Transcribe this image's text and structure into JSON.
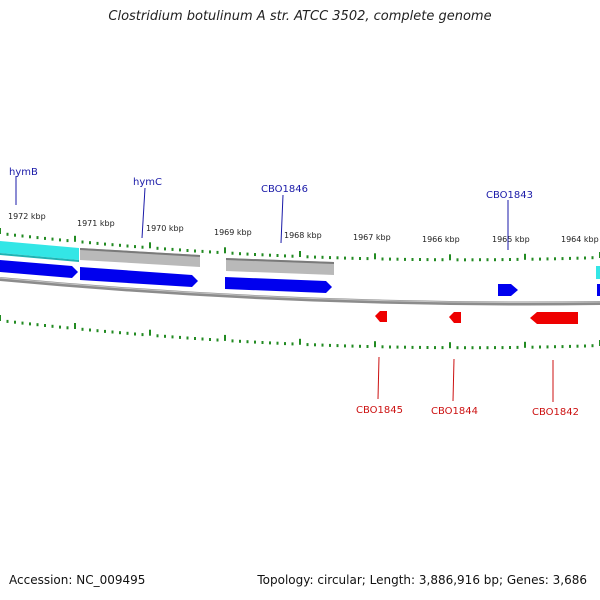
{
  "title": "Clostridium botulinum A str. ATCC 3502, complete genome",
  "footer": {
    "accession": "Accession: NC_009495",
    "summary": "Topology: circular; Length: 3,886,916 bp; Genes: 3,686"
  },
  "colors": {
    "forward_gene": "#0000ee",
    "reverse_gene": "#ee0000",
    "feature_cyan": "#33e6e6",
    "feature_gray": "#b4b4b4",
    "backbone": "#8c8c8c",
    "tick": "#228b22",
    "forward_label": "#1a1aa8",
    "reverse_label": "#cc1111"
  },
  "scale_labels": [
    "1972 kbp",
    "1971 kbp",
    "1970 kbp",
    "1969 kbp",
    "1968 kbp",
    "1967 kbp",
    "1966 kbp",
    "1965 kbp",
    "1964 kbp"
  ],
  "forward_genes": [
    "hymB",
    "hymC",
    "CBO1846",
    "CBO1843"
  ],
  "reverse_genes": [
    "CBO1845",
    "CBO1844",
    "CBO1842"
  ]
}
